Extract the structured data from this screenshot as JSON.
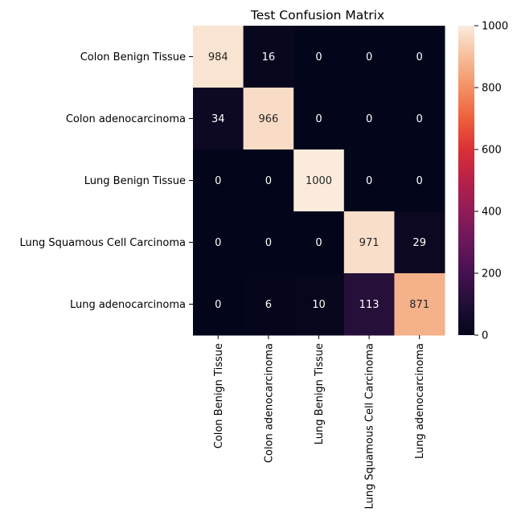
{
  "chart_data": {
    "type": "heatmap",
    "title": "Test Confusion Matrix",
    "xlabel": "",
    "ylabel": "",
    "row_labels": [
      "Colon Benign Tissue",
      "Colon adenocarcinoma",
      "Lung Benign Tissue",
      "Lung Squamous Cell Carcinoma",
      "Lung adenocarcinoma"
    ],
    "col_labels": [
      "Colon Benign Tissue",
      "Colon adenocarcinoma",
      "Lung Benign Tissue",
      "Lung Squamous Cell Carcinoma",
      "Lung adenocarcinoma"
    ],
    "values": [
      [
        984,
        16,
        0,
        0,
        0
      ],
      [
        34,
        966,
        0,
        0,
        0
      ],
      [
        0,
        0,
        1000,
        0,
        0
      ],
      [
        0,
        0,
        0,
        971,
        29
      ],
      [
        0,
        6,
        10,
        113,
        871
      ]
    ],
    "value_range": [
      0,
      1000
    ],
    "colormap": "rocket",
    "colorbar": {
      "ticks": [
        0,
        200,
        400,
        600,
        800,
        1000
      ],
      "tick_labels": [
        "0",
        "200",
        "400",
        "600",
        "800",
        "1000"
      ],
      "placement": "right"
    },
    "grid": false
  }
}
